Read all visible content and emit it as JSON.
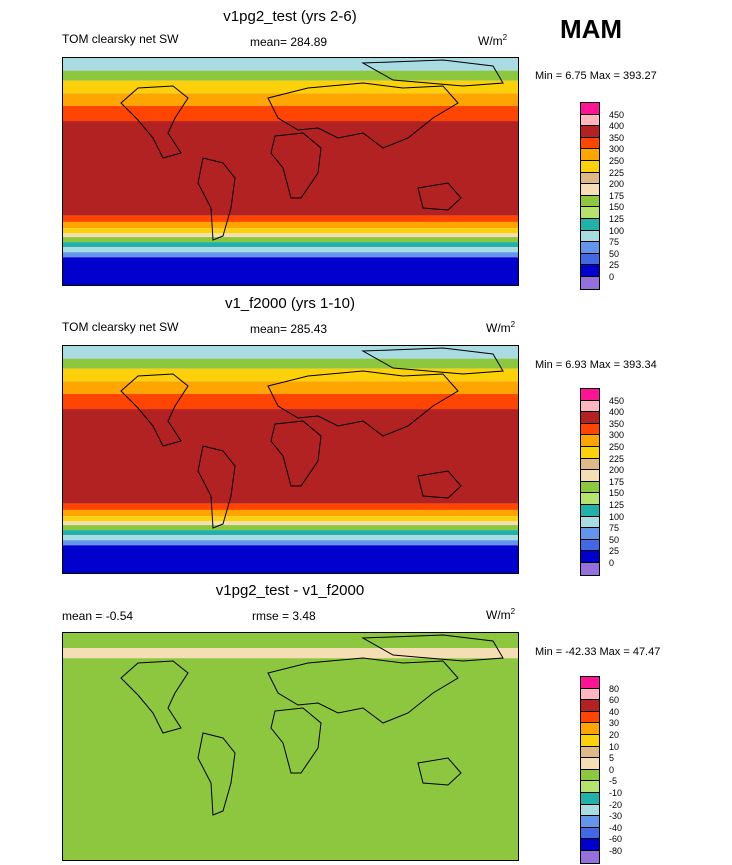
{
  "season": "MAM",
  "chart_data": [
    {
      "type": "heatmap",
      "title": "v1pg2_test (yrs 2-6)",
      "left_label": "TOM clearsky net SW",
      "mean_text": "mean= 284.89",
      "units_base": "W/m",
      "units_exp": "2",
      "minmax_text": "Min =   6.75 Max = 393.27",
      "bands": [
        {
          "lat_top": 90,
          "lat_bottom": 80,
          "color": "#a8dbe2"
        },
        {
          "lat_top": 80,
          "lat_bottom": 72,
          "color": "#8dc63f"
        },
        {
          "lat_top": 72,
          "lat_bottom": 62,
          "color": "#fdd10a"
        },
        {
          "lat_top": 62,
          "lat_bottom": 52,
          "color": "#ffa500"
        },
        {
          "lat_top": 52,
          "lat_bottom": 40,
          "color": "#ff4500"
        },
        {
          "lat_top": 40,
          "lat_bottom": -35,
          "color": "#b22222"
        },
        {
          "lat_top": -35,
          "lat_bottom": -40,
          "color": "#ff4500"
        },
        {
          "lat_top": -40,
          "lat_bottom": -45,
          "color": "#ffa500"
        },
        {
          "lat_top": -45,
          "lat_bottom": -49,
          "color": "#fdd10a"
        },
        {
          "lat_top": -49,
          "lat_bottom": -52,
          "color": "#f5deb3"
        },
        {
          "lat_top": -52,
          "lat_bottom": -56,
          "color": "#8dc63f"
        },
        {
          "lat_top": -56,
          "lat_bottom": -60,
          "color": "#20b2aa"
        },
        {
          "lat_top": -60,
          "lat_bottom": -64,
          "color": "#a8dbe2"
        },
        {
          "lat_top": -64,
          "lat_bottom": -68,
          "color": "#6495ed"
        },
        {
          "lat_top": -68,
          "lat_bottom": -90,
          "color": "#0000cd"
        }
      ],
      "colorbar": {
        "labels": [
          "450",
          "400",
          "350",
          "300",
          "250",
          "225",
          "200",
          "175",
          "150",
          "125",
          "100",
          "75",
          "50",
          "25",
          "0"
        ],
        "colors": [
          "#ff1493",
          "#ffb6c1",
          "#b22222",
          "#ff4500",
          "#ffa500",
          "#fdd10a",
          "#deb887",
          "#f5deb3",
          "#8dc63f",
          "#b6e36b",
          "#20b2aa",
          "#a8dbe2",
          "#6495ed",
          "#4169e1",
          "#0000cd",
          "#9370db"
        ]
      }
    },
    {
      "type": "heatmap",
      "title": "v1_f2000 (yrs 1-10)",
      "left_label": "TOM clearsky net SW",
      "mean_text": "mean= 285.43",
      "units_base": "W/m",
      "units_exp": "2",
      "minmax_text": "Min =   6.93 Max = 393.34",
      "bands": [
        {
          "lat_top": 90,
          "lat_bottom": 80,
          "color": "#a8dbe2"
        },
        {
          "lat_top": 80,
          "lat_bottom": 72,
          "color": "#8dc63f"
        },
        {
          "lat_top": 72,
          "lat_bottom": 62,
          "color": "#fdd10a"
        },
        {
          "lat_top": 62,
          "lat_bottom": 52,
          "color": "#ffa500"
        },
        {
          "lat_top": 52,
          "lat_bottom": 40,
          "color": "#ff4500"
        },
        {
          "lat_top": 40,
          "lat_bottom": -35,
          "color": "#b22222"
        },
        {
          "lat_top": -35,
          "lat_bottom": -40,
          "color": "#ff4500"
        },
        {
          "lat_top": -40,
          "lat_bottom": -45,
          "color": "#ffa500"
        },
        {
          "lat_top": -45,
          "lat_bottom": -49,
          "color": "#fdd10a"
        },
        {
          "lat_top": -49,
          "lat_bottom": -52,
          "color": "#f5deb3"
        },
        {
          "lat_top": -52,
          "lat_bottom": -56,
          "color": "#8dc63f"
        },
        {
          "lat_top": -56,
          "lat_bottom": -60,
          "color": "#20b2aa"
        },
        {
          "lat_top": -60,
          "lat_bottom": -64,
          "color": "#a8dbe2"
        },
        {
          "lat_top": -64,
          "lat_bottom": -68,
          "color": "#6495ed"
        },
        {
          "lat_top": -68,
          "lat_bottom": -90,
          "color": "#0000cd"
        }
      ],
      "colorbar": {
        "labels": [
          "450",
          "400",
          "350",
          "300",
          "250",
          "225",
          "200",
          "175",
          "150",
          "125",
          "100",
          "75",
          "50",
          "25",
          "0"
        ],
        "colors": [
          "#ff1493",
          "#ffb6c1",
          "#b22222",
          "#ff4500",
          "#ffa500",
          "#fdd10a",
          "#deb887",
          "#f5deb3",
          "#8dc63f",
          "#b6e36b",
          "#20b2aa",
          "#a8dbe2",
          "#6495ed",
          "#4169e1",
          "#0000cd",
          "#9370db"
        ]
      }
    },
    {
      "type": "heatmap",
      "title": "v1pg2_test - v1_f2000",
      "left_label": "mean =  -0.54",
      "mean_text": "rmse =   3.48",
      "units_base": "W/m",
      "units_exp": "2",
      "minmax_text": "Min = -42.33 Max =  47.47",
      "bands": [
        {
          "lat_top": 90,
          "lat_bottom": 78,
          "color": "#8dc63f"
        },
        {
          "lat_top": 78,
          "lat_bottom": 70,
          "color": "#f5deb3"
        },
        {
          "lat_top": 70,
          "lat_bottom": -90,
          "color": "#8dc63f"
        }
      ],
      "colorbar": {
        "labels": [
          "80",
          "60",
          "40",
          "30",
          "20",
          "10",
          "5",
          "0",
          "-5",
          "-10",
          "-20",
          "-30",
          "-40",
          "-60",
          "-80"
        ],
        "colors": [
          "#ff1493",
          "#ffb6c1",
          "#b22222",
          "#ff4500",
          "#ffa500",
          "#fdd10a",
          "#deb887",
          "#f5deb3",
          "#8dc63f",
          "#b6e36b",
          "#20b2aa",
          "#a8dbe2",
          "#6495ed",
          "#4169e1",
          "#0000cd",
          "#9370db"
        ]
      }
    }
  ]
}
